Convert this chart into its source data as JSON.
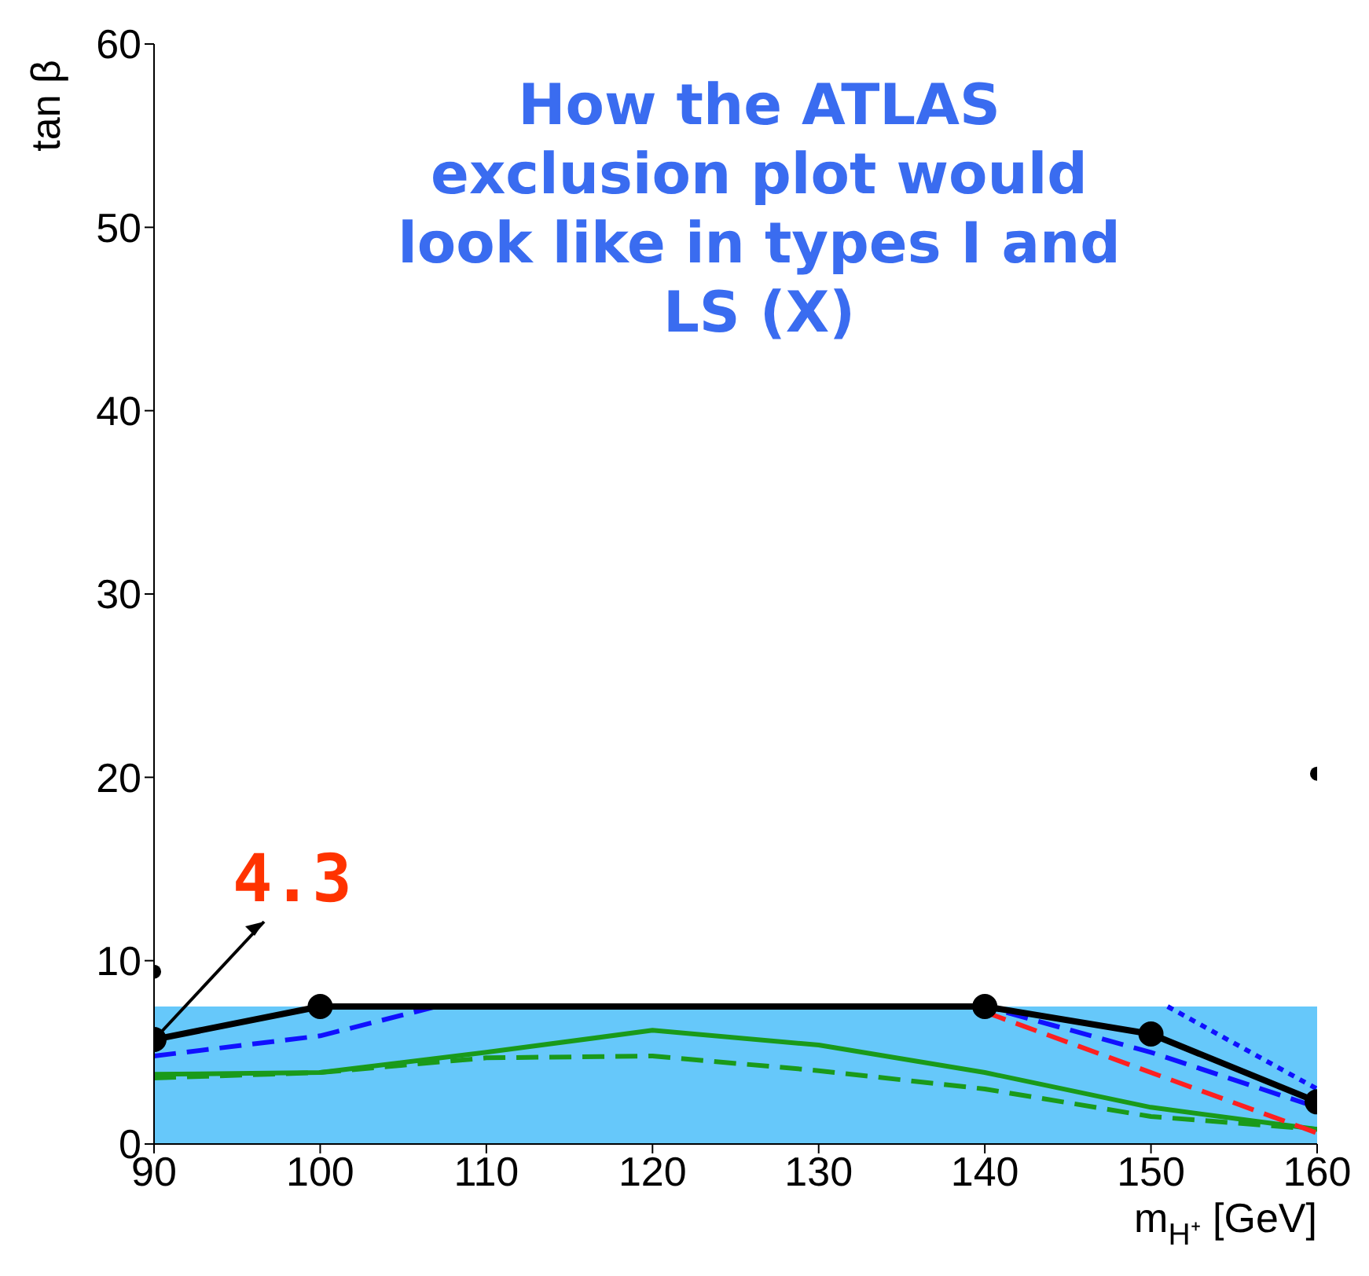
{
  "chart_data": {
    "type": "line",
    "xlabel": "m$_{H⁺}$ [GeV]",
    "ylabel": "tan β",
    "xlim": [
      90,
      160
    ],
    "xticks": [
      90,
      100,
      110,
      120,
      130,
      140,
      150,
      160
    ],
    "ylim": [
      0,
      60
    ],
    "yticks": [
      0,
      10,
      20,
      30,
      40,
      50,
      60
    ],
    "series": [
      {
        "type": "area",
        "color": "#66c8fa",
        "x": [
          90,
          160
        ],
        "values": [
          7.5,
          7.5
        ]
      },
      {
        "color": "#1a9a1a",
        "x": [
          90,
          100,
          110,
          120,
          130,
          140,
          150,
          160
        ],
        "values": [
          3.6,
          3.9,
          4.7,
          4.8,
          4.0,
          3.0,
          1.5,
          0.8
        ],
        "marker": "none",
        "line_style": "dashed"
      },
      {
        "color": "#1a9a1a",
        "x": [
          90,
          100,
          110,
          120,
          130,
          140,
          150,
          160
        ],
        "values": [
          3.8,
          3.9,
          5.0,
          6.2,
          5.4,
          3.9,
          2.0,
          0.8
        ],
        "marker": "none",
        "line_style": "solid"
      },
      {
        "color": "#ff2020",
        "x": [
          140,
          160
        ],
        "values": [
          7.2,
          0.6
        ],
        "marker": "none",
        "line_style": "dashed"
      },
      {
        "color": "#1010ff",
        "x": [
          151,
          160
        ],
        "values": [
          7.5,
          3.0
        ],
        "marker": "none",
        "line_style": "dotted"
      },
      {
        "color": "#1010ff",
        "x": [
          90,
          100,
          107,
          140,
          150,
          160
        ],
        "values": [
          4.8,
          5.9,
          7.5,
          7.5,
          5.0,
          2.0
        ],
        "marker": "none",
        "line_style": "dashed"
      },
      {
        "color": "#000000",
        "x": [
          90,
          100,
          140,
          150,
          160
        ],
        "values": [
          5.7,
          7.5,
          7.5,
          6.0,
          2.3
        ],
        "marker": "circle",
        "line_style": "solid"
      },
      {
        "type": "scatter",
        "color": "#000000",
        "x": [
          90,
          160
        ],
        "values": [
          9.4,
          20.2
        ],
        "marker": "circle"
      }
    ],
    "annotations": [
      "How the ATLAS exclusion plot would look like in types I and LS (X)",
      {
        "text": "4.3",
        "x": 90,
        "y": 5.7
      }
    ]
  }
}
